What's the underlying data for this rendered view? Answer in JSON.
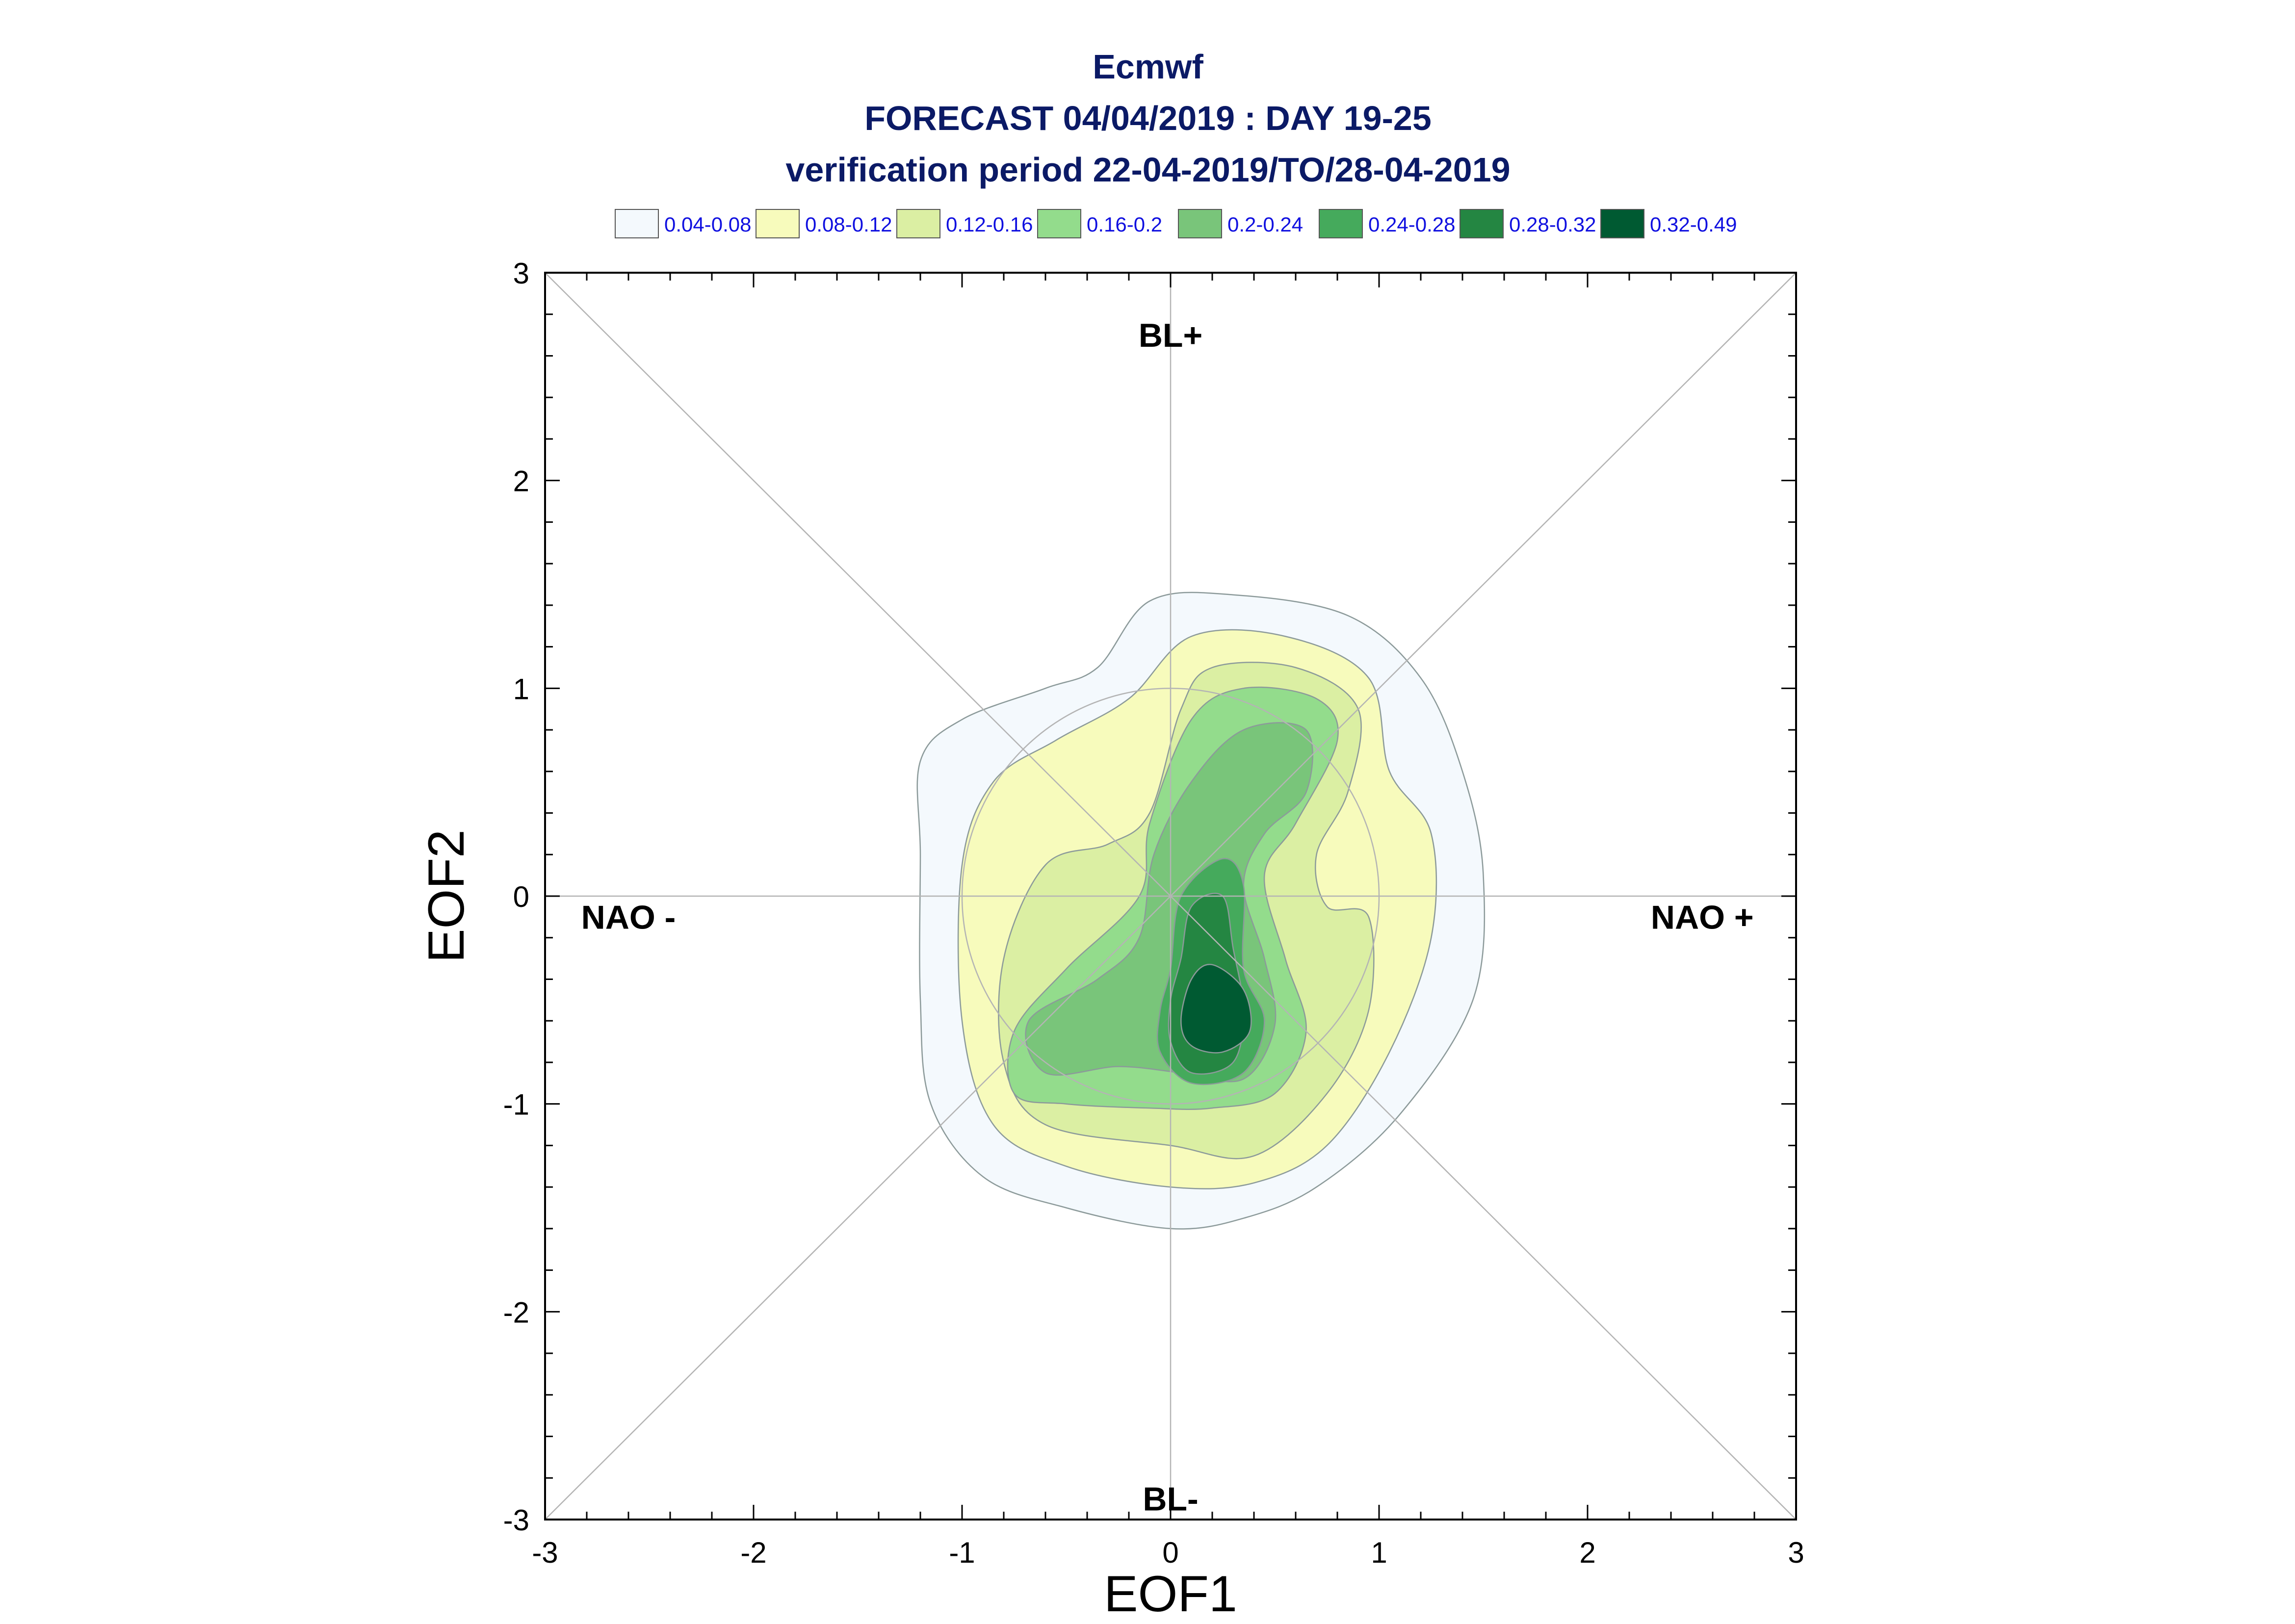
{
  "chart_data": {
    "type": "contour",
    "title_lines": [
      "Ecmwf",
      "FORECAST 04/04/2019 : DAY 19-25",
      "verification period 22-04-2019/TO/28-04-2019"
    ],
    "xlabel": "EOF1",
    "ylabel": "EOF2",
    "xlim": [
      -3,
      3
    ],
    "ylim": [
      -3,
      3
    ],
    "x_ticks": [
      "-3",
      "-2",
      "-1",
      "0",
      "1",
      "2",
      "3"
    ],
    "y_ticks": [
      "-3",
      "-2",
      "-1",
      "0",
      "1",
      "2",
      "3"
    ],
    "legend_placement": "top",
    "regime_labels": [
      {
        "text": "BL+",
        "x": 0,
        "y": 2.7
      },
      {
        "text": "BL-",
        "x": 0,
        "y": -2.9
      },
      {
        "text": "NAO -",
        "x": -2.6,
        "y": -0.1
      },
      {
        "text": "NAO +",
        "x": 2.55,
        "y": -0.1
      }
    ],
    "reference_lines": {
      "diagonals": true,
      "zero_lines": true,
      "unit_circle_radius": 1
    },
    "levels": [
      {
        "label": "0.04-0.08",
        "color": "#f4f9fd"
      },
      {
        "label": "0.08-0.12",
        "color": "#f7fbbc"
      },
      {
        "label": "0.12-0.16",
        "color": "#dbefa3"
      },
      {
        "label": "0.16-0.2",
        "color": "#93dc8c"
      },
      {
        "label": "0.2-0.24",
        "color": "#79c57a"
      },
      {
        "label": "0.24-0.28",
        "color": "#45aa5c"
      },
      {
        "label": "0.28-0.32",
        "color": "#248642"
      },
      {
        "label": "0.32-0.49",
        "color": "#005a32"
      }
    ],
    "contours": [
      {
        "level": 0,
        "points": [
          [
            -1.2,
            0.65
          ],
          [
            -1.0,
            0.85
          ],
          [
            -0.6,
            1.0
          ],
          [
            -0.35,
            1.1
          ],
          [
            -0.1,
            1.42
          ],
          [
            0.3,
            1.45
          ],
          [
            0.85,
            1.35
          ],
          [
            1.2,
            1.05
          ],
          [
            1.4,
            0.6
          ],
          [
            1.5,
            0.1
          ],
          [
            1.45,
            -0.5
          ],
          [
            1.1,
            -1.05
          ],
          [
            0.7,
            -1.4
          ],
          [
            0.35,
            -1.55
          ],
          [
            0.0,
            -1.6
          ],
          [
            -0.5,
            -1.5
          ],
          [
            -0.9,
            -1.35
          ],
          [
            -1.15,
            -1.0
          ],
          [
            -1.2,
            -0.5
          ],
          [
            -1.2,
            0.2
          ]
        ]
      },
      {
        "level": 1,
        "points": [
          [
            -1.0,
            0.15
          ],
          [
            -0.85,
            0.55
          ],
          [
            -0.55,
            0.75
          ],
          [
            -0.2,
            0.95
          ],
          [
            0.1,
            1.25
          ],
          [
            0.55,
            1.25
          ],
          [
            0.95,
            1.05
          ],
          [
            1.05,
            0.6
          ],
          [
            1.25,
            0.3
          ],
          [
            1.25,
            -0.2
          ],
          [
            1.05,
            -0.75
          ],
          [
            0.75,
            -1.2
          ],
          [
            0.4,
            -1.38
          ],
          [
            0.0,
            -1.4
          ],
          [
            -0.5,
            -1.3
          ],
          [
            -0.85,
            -1.1
          ],
          [
            -1.0,
            -0.6
          ]
        ]
      },
      {
        "level": 2,
        "points": [
          [
            -0.8,
            -0.3
          ],
          [
            -0.6,
            0.15
          ],
          [
            -0.3,
            0.25
          ],
          [
            -0.1,
            0.4
          ],
          [
            0.05,
            0.9
          ],
          [
            0.2,
            1.1
          ],
          [
            0.6,
            1.1
          ],
          [
            0.9,
            0.9
          ],
          [
            0.85,
            0.5
          ],
          [
            0.7,
            0.2
          ],
          [
            0.75,
            -0.05
          ],
          [
            0.95,
            -0.1
          ],
          [
            0.95,
            -0.55
          ],
          [
            0.75,
            -0.95
          ],
          [
            0.4,
            -1.25
          ],
          [
            0.0,
            -1.2
          ],
          [
            -0.6,
            -1.1
          ],
          [
            -0.8,
            -0.8
          ]
        ]
      },
      {
        "level": 3,
        "points": [
          [
            -0.75,
            -0.65
          ],
          [
            -0.5,
            -0.35
          ],
          [
            -0.15,
            0.0
          ],
          [
            -0.1,
            0.35
          ],
          [
            0.1,
            0.85
          ],
          [
            0.35,
            1.0
          ],
          [
            0.7,
            0.95
          ],
          [
            0.8,
            0.75
          ],
          [
            0.6,
            0.35
          ],
          [
            0.45,
            0.1
          ],
          [
            0.55,
            -0.3
          ],
          [
            0.65,
            -0.65
          ],
          [
            0.5,
            -0.95
          ],
          [
            0.2,
            -1.02
          ],
          [
            -0.1,
            -1.02
          ],
          [
            -0.5,
            -1.0
          ],
          [
            -0.75,
            -0.95
          ]
        ]
      },
      {
        "level": 4,
        "points": [
          [
            -0.68,
            -0.6
          ],
          [
            -0.35,
            -0.4
          ],
          [
            -0.15,
            -0.2
          ],
          [
            -0.08,
            0.2
          ],
          [
            0.1,
            0.55
          ],
          [
            0.35,
            0.8
          ],
          [
            0.65,
            0.8
          ],
          [
            0.65,
            0.5
          ],
          [
            0.45,
            0.3
          ],
          [
            0.35,
            0.05
          ],
          [
            0.45,
            -0.3
          ],
          [
            0.5,
            -0.62
          ],
          [
            0.35,
            -0.88
          ],
          [
            0.05,
            -0.85
          ],
          [
            -0.25,
            -0.82
          ],
          [
            -0.6,
            -0.85
          ]
        ]
      },
      {
        "level": 5,
        "points": [
          [
            0.0,
            -0.35
          ],
          [
            0.05,
            0.0
          ],
          [
            0.25,
            0.18
          ],
          [
            0.35,
            0.05
          ],
          [
            0.35,
            -0.35
          ],
          [
            0.45,
            -0.6
          ],
          [
            0.35,
            -0.85
          ],
          [
            0.1,
            -0.9
          ],
          [
            -0.05,
            -0.75
          ],
          [
            -0.05,
            -0.55
          ]
        ]
      },
      {
        "level": 6,
        "points": [
          [
            0.05,
            -0.3
          ],
          [
            0.1,
            -0.05
          ],
          [
            0.25,
            0.0
          ],
          [
            0.3,
            -0.25
          ],
          [
            0.35,
            -0.55
          ],
          [
            0.3,
            -0.8
          ],
          [
            0.1,
            -0.85
          ],
          [
            0.0,
            -0.7
          ],
          [
            0.0,
            -0.5
          ]
        ]
      },
      {
        "level": 7,
        "points": [
          [
            0.1,
            -0.4
          ],
          [
            0.2,
            -0.33
          ],
          [
            0.35,
            -0.45
          ],
          [
            0.38,
            -0.65
          ],
          [
            0.25,
            -0.75
          ],
          [
            0.1,
            -0.72
          ],
          [
            0.05,
            -0.6
          ]
        ]
      }
    ]
  }
}
